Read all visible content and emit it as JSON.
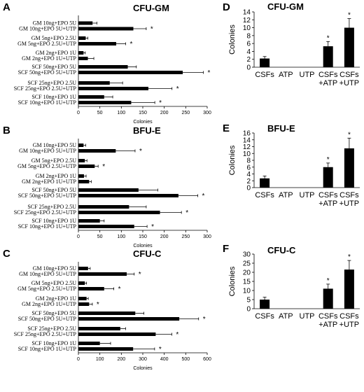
{
  "chart_data": [
    {
      "panel": "A",
      "title": "CFU-GM",
      "type": "bar",
      "orientation": "horizontal",
      "xlabel": "Colonies",
      "xlim": [
        0,
        300
      ],
      "xticks": [
        0,
        50,
        100,
        150,
        200,
        250,
        300
      ],
      "categories": [
        "GM 10ng+EPO 5U",
        "GM 10ng+EPO 5U+UTP",
        "GM 5ng+EPO 2.5U",
        "GM 5ng+EPO 2.5U+UTP",
        "GM 2ng+EPO 1U",
        "GM 2ng+EPO 1U+UTP",
        "SCF 50ng+EPO 5U",
        "SCF 50ng+EPO 5U+UTP",
        "SCF 25ng+EPO 2.5U",
        "SCF 25ng+EPO 2.5U+UTP",
        "SCF 10ng+EPO 1U",
        "SCF 10ng+EPO 1U+UTP"
      ],
      "values": [
        33,
        128,
        17,
        88,
        12,
        22,
        115,
        243,
        73,
        163,
        60,
        123
      ],
      "errors": [
        10,
        30,
        5,
        22,
        4,
        14,
        20,
        48,
        30,
        55,
        20,
        55
      ],
      "significant": [
        false,
        true,
        false,
        true,
        false,
        false,
        false,
        true,
        false,
        true,
        false,
        true
      ]
    },
    {
      "panel": "B",
      "title": "BFU-E",
      "type": "bar",
      "orientation": "horizontal",
      "xlabel": "Colonies",
      "xlim": [
        0,
        300
      ],
      "xticks": [
        0,
        50,
        100,
        150,
        200,
        250,
        300
      ],
      "categories": [
        "GM 10ng+EPO 5U",
        "GM 10ng+EPO 5U+UTP",
        "GM 5ng+EPO 2.5U",
        "GM 5ng+EPO 2.5U+UTP",
        "GM 2ng+EPO 1U",
        "GM 2ng+EPO 1U+UTP",
        "SCF 50ng+EPO 5U",
        "SCF 50ng+EPO 5U+UTP",
        "SCF 25ng+EPO 2.5U",
        "SCF 25ng+EPO 2.5U+UTP",
        "SCF 10ng+EPO 1U",
        "SCF 10ng+EPO 1U+UTP"
      ],
      "values": [
        12,
        87,
        15,
        38,
        13,
        25,
        140,
        233,
        118,
        190,
        50,
        130
      ],
      "errors": [
        5,
        45,
        5,
        8,
        5,
        5,
        45,
        45,
        40,
        50,
        10,
        30
      ],
      "significant": [
        false,
        true,
        false,
        true,
        false,
        false,
        false,
        true,
        false,
        true,
        false,
        true
      ]
    },
    {
      "panel": "C",
      "title": "CFU-C",
      "type": "bar",
      "orientation": "horizontal",
      "xlabel": "Colonies",
      "xlim": [
        0,
        600
      ],
      "xticks": [
        0,
        100,
        200,
        300,
        400,
        500,
        600
      ],
      "categories": [
        "GM 10ng+EPO 5U",
        "GM 10ng+EPO 5U+UTP",
        "GM 5ng+EPO 2.5U",
        "GM 5ng+EPO 2.5U+UTP",
        "GM 2ng+EPO 1U",
        "GM 2ng+EPO 1U+UTP",
        "SCF 50ng+EPO 5U",
        "SCF 50ng+EPO 5U+UTP",
        "SCF 25ng+EPO 2.5U",
        "SCF 25ng+EPO 2.5U+UTP",
        "SCF 10ng+EPO 1U",
        "SCF 10ng+EPO 1U+UTP"
      ],
      "values": [
        45,
        225,
        30,
        120,
        38,
        50,
        265,
        470,
        195,
        360,
        100,
        255
      ],
      "errors": [
        10,
        35,
        8,
        45,
        8,
        15,
        40,
        90,
        25,
        75,
        50,
        100
      ],
      "significant": [
        false,
        true,
        false,
        true,
        false,
        true,
        false,
        true,
        false,
        true,
        false,
        true
      ]
    },
    {
      "panel": "D",
      "title": "CFU-GM",
      "type": "bar",
      "ylabel": "Colonies",
      "ylim": [
        0,
        14
      ],
      "yticks": [
        0,
        2,
        4,
        6,
        8,
        10,
        12,
        14
      ],
      "categories": [
        "CSFs",
        "ATP",
        "UTP",
        "CSFs\n+ATP",
        "CSFs\n+UTP"
      ],
      "values": [
        2.2,
        0,
        0,
        5.3,
        10
      ],
      "errors": [
        0.5,
        0,
        0,
        1.2,
        2.3
      ],
      "significant": [
        false,
        false,
        false,
        true,
        true
      ]
    },
    {
      "panel": "E",
      "title": "BFU-E",
      "type": "bar",
      "ylabel": "Colonies",
      "ylim": [
        0,
        16
      ],
      "yticks": [
        0,
        2,
        4,
        6,
        8,
        10,
        12,
        14,
        16
      ],
      "categories": [
        "CSFs",
        "ATP",
        "UTP",
        "CSFs\n+ATP",
        "CSFs\n+UTP"
      ],
      "values": [
        2.7,
        0,
        0,
        6,
        11.5
      ],
      "errors": [
        0.7,
        0,
        0,
        1.2,
        3
      ],
      "significant": [
        false,
        false,
        false,
        true,
        true
      ]
    },
    {
      "panel": "F",
      "title": "CFU-C",
      "type": "bar",
      "ylabel": "Colonies",
      "ylim": [
        0,
        30
      ],
      "yticks": [
        0,
        5,
        10,
        15,
        20,
        25,
        30
      ],
      "categories": [
        "CSFs",
        "ATP",
        "UTP",
        "CSFs\n+ATP",
        "CSFs\n+UTP"
      ],
      "values": [
        5,
        0,
        0,
        11,
        21.5
      ],
      "errors": [
        1.3,
        0,
        0,
        2.5,
        5
      ],
      "significant": [
        false,
        false,
        false,
        true,
        true
      ]
    }
  ],
  "significance_marker": "*"
}
